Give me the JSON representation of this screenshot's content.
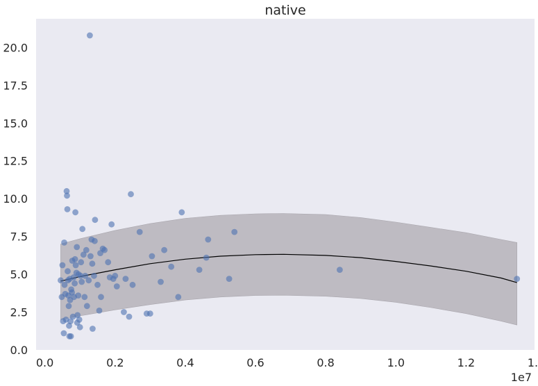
{
  "chart_data": {
    "type": "scatter",
    "title": "native",
    "x_offset_label": "1e7",
    "xlim": [
      -0.025,
      1.395
    ],
    "ylim": [
      0,
      21.9
    ],
    "x_ticks": [
      0.0,
      0.2,
      0.4,
      0.6,
      0.8,
      1.0,
      1.2,
      1.4
    ],
    "x_tick_labels": [
      "0.0",
      "0.2",
      "0.4",
      "0.6",
      "0.8",
      "1.0",
      "1.2",
      "1.4"
    ],
    "y_ticks": [
      0.0,
      2.5,
      5.0,
      7.5,
      10.0,
      12.5,
      15.0,
      17.5,
      20.0
    ],
    "y_tick_labels": [
      "0.0",
      "2.5",
      "5.0",
      "7.5",
      "10.0",
      "12.5",
      "15.0",
      "17.5",
      "20.0"
    ],
    "grid": false,
    "colors": {
      "background": "#eaeaf2",
      "points": "#4c72b0",
      "band": "#b6b3ba",
      "fit_line": "#000000",
      "text": "#262626"
    },
    "points": [
      [
        0.045,
        4.6
      ],
      [
        0.048,
        3.5
      ],
      [
        0.05,
        5.6
      ],
      [
        0.052,
        1.9
      ],
      [
        0.054,
        1.1
      ],
      [
        0.055,
        7.1
      ],
      [
        0.056,
        4.3
      ],
      [
        0.058,
        3.7
      ],
      [
        0.06,
        2.0
      ],
      [
        0.062,
        10.5
      ],
      [
        0.063,
        10.2
      ],
      [
        0.064,
        9.3
      ],
      [
        0.065,
        5.2
      ],
      [
        0.066,
        4.6
      ],
      [
        0.067,
        3.6
      ],
      [
        0.068,
        2.9
      ],
      [
        0.069,
        1.6
      ],
      [
        0.07,
        0.9
      ],
      [
        0.071,
        4.7
      ],
      [
        0.072,
        3.3
      ],
      [
        0.073,
        1.9
      ],
      [
        0.074,
        0.9
      ],
      [
        0.075,
        4.0
      ],
      [
        0.077,
        3.8
      ],
      [
        0.078,
        5.9
      ],
      [
        0.08,
        2.2
      ],
      [
        0.082,
        4.8
      ],
      [
        0.083,
        3.5
      ],
      [
        0.085,
        4.4
      ],
      [
        0.086,
        6.0
      ],
      [
        0.087,
        9.1
      ],
      [
        0.088,
        5.6
      ],
      [
        0.09,
        5.1
      ],
      [
        0.091,
        6.8
      ],
      [
        0.092,
        1.8
      ],
      [
        0.093,
        2.3
      ],
      [
        0.095,
        3.6
      ],
      [
        0.096,
        5.0
      ],
      [
        0.098,
        2.0
      ],
      [
        0.1,
        1.5
      ],
      [
        0.102,
        4.9
      ],
      [
        0.103,
        5.8
      ],
      [
        0.105,
        4.5
      ],
      [
        0.107,
        8.0
      ],
      [
        0.11,
        6.3
      ],
      [
        0.113,
        3.5
      ],
      [
        0.115,
        4.9
      ],
      [
        0.118,
        6.6
      ],
      [
        0.12,
        2.9
      ],
      [
        0.125,
        4.6
      ],
      [
        0.128,
        20.8
      ],
      [
        0.13,
        6.2
      ],
      [
        0.133,
        7.3
      ],
      [
        0.135,
        5.7
      ],
      [
        0.136,
        1.4
      ],
      [
        0.14,
        4.9
      ],
      [
        0.142,
        7.2
      ],
      [
        0.143,
        8.6
      ],
      [
        0.15,
        4.3
      ],
      [
        0.155,
        2.6
      ],
      [
        0.158,
        6.4
      ],
      [
        0.16,
        3.5
      ],
      [
        0.165,
        6.7
      ],
      [
        0.17,
        6.6
      ],
      [
        0.18,
        5.8
      ],
      [
        0.185,
        4.8
      ],
      [
        0.19,
        8.3
      ],
      [
        0.195,
        4.7
      ],
      [
        0.2,
        4.9
      ],
      [
        0.205,
        4.2
      ],
      [
        0.225,
        2.5
      ],
      [
        0.23,
        4.7
      ],
      [
        0.24,
        2.2
      ],
      [
        0.245,
        10.3
      ],
      [
        0.25,
        4.3
      ],
      [
        0.27,
        7.8
      ],
      [
        0.29,
        2.4
      ],
      [
        0.3,
        2.4
      ],
      [
        0.305,
        6.2
      ],
      [
        0.33,
        4.5
      ],
      [
        0.34,
        6.6
      ],
      [
        0.36,
        5.5
      ],
      [
        0.38,
        3.5
      ],
      [
        0.39,
        9.1
      ],
      [
        0.44,
        5.3
      ],
      [
        0.46,
        6.1
      ],
      [
        0.465,
        7.3
      ],
      [
        0.525,
        4.7
      ],
      [
        0.54,
        7.8
      ],
      [
        0.84,
        5.3
      ],
      [
        1.345,
        4.7
      ]
    ],
    "fit_line": {
      "x": [
        0.045,
        0.1,
        0.2,
        0.3,
        0.4,
        0.5,
        0.6,
        0.68,
        0.8,
        0.9,
        1.0,
        1.1,
        1.2,
        1.3,
        1.345
      ],
      "y": [
        4.55,
        4.85,
        5.3,
        5.7,
        6.0,
        6.2,
        6.3,
        6.32,
        6.25,
        6.1,
        5.85,
        5.55,
        5.2,
        4.75,
        4.45
      ]
    },
    "band_upper": {
      "x": [
        0.045,
        0.1,
        0.2,
        0.3,
        0.4,
        0.5,
        0.6,
        0.68,
        0.8,
        0.9,
        1.0,
        1.1,
        1.2,
        1.3,
        1.345
      ],
      "y": [
        7.0,
        7.35,
        7.9,
        8.35,
        8.7,
        8.9,
        9.0,
        9.02,
        8.95,
        8.75,
        8.45,
        8.1,
        7.75,
        7.3,
        7.1
      ]
    },
    "band_lower": {
      "x": [
        0.045,
        0.1,
        0.2,
        0.3,
        0.4,
        0.5,
        0.6,
        0.68,
        0.8,
        0.9,
        1.0,
        1.1,
        1.2,
        1.3,
        1.345
      ],
      "y": [
        2.0,
        2.25,
        2.65,
        3.0,
        3.3,
        3.5,
        3.6,
        3.62,
        3.55,
        3.4,
        3.15,
        2.8,
        2.4,
        1.9,
        1.65
      ]
    }
  }
}
